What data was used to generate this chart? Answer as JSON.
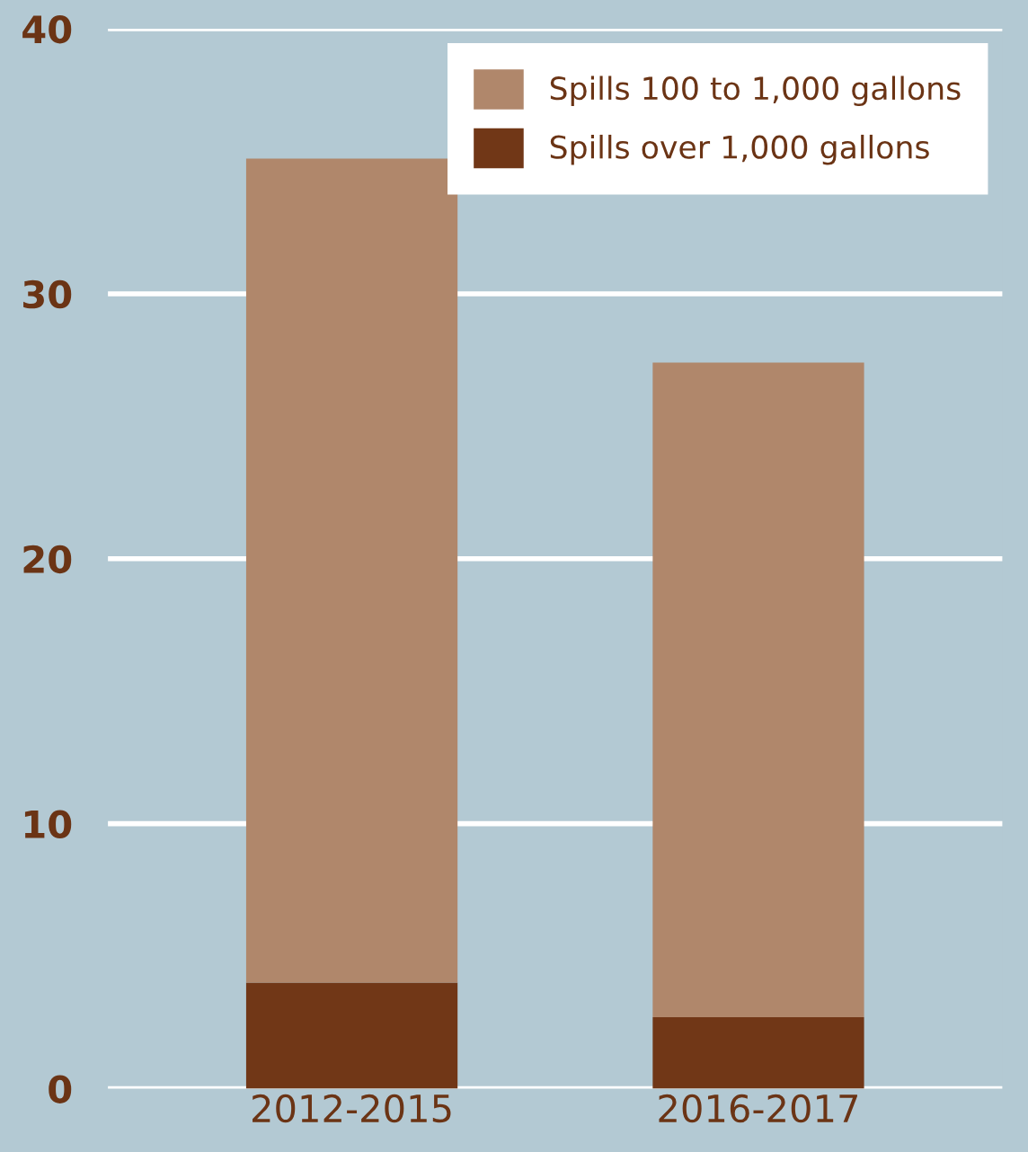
{
  "chart_data": {
    "type": "bar",
    "stacked": true,
    "categories": [
      "2012-2015",
      "2016-2017"
    ],
    "series": [
      {
        "name": "Spills over 1,000 gallons",
        "color": "#713717",
        "values": [
          4,
          2.7
        ]
      },
      {
        "name": "Spills 100 to 1,000 gallons",
        "color": "#b0876b",
        "values": [
          31.1,
          24.7
        ]
      }
    ],
    "ylim": [
      0,
      40
    ],
    "yticks": [
      0,
      10,
      20,
      30,
      40
    ],
    "grid": "y",
    "legend": "top right"
  }
}
